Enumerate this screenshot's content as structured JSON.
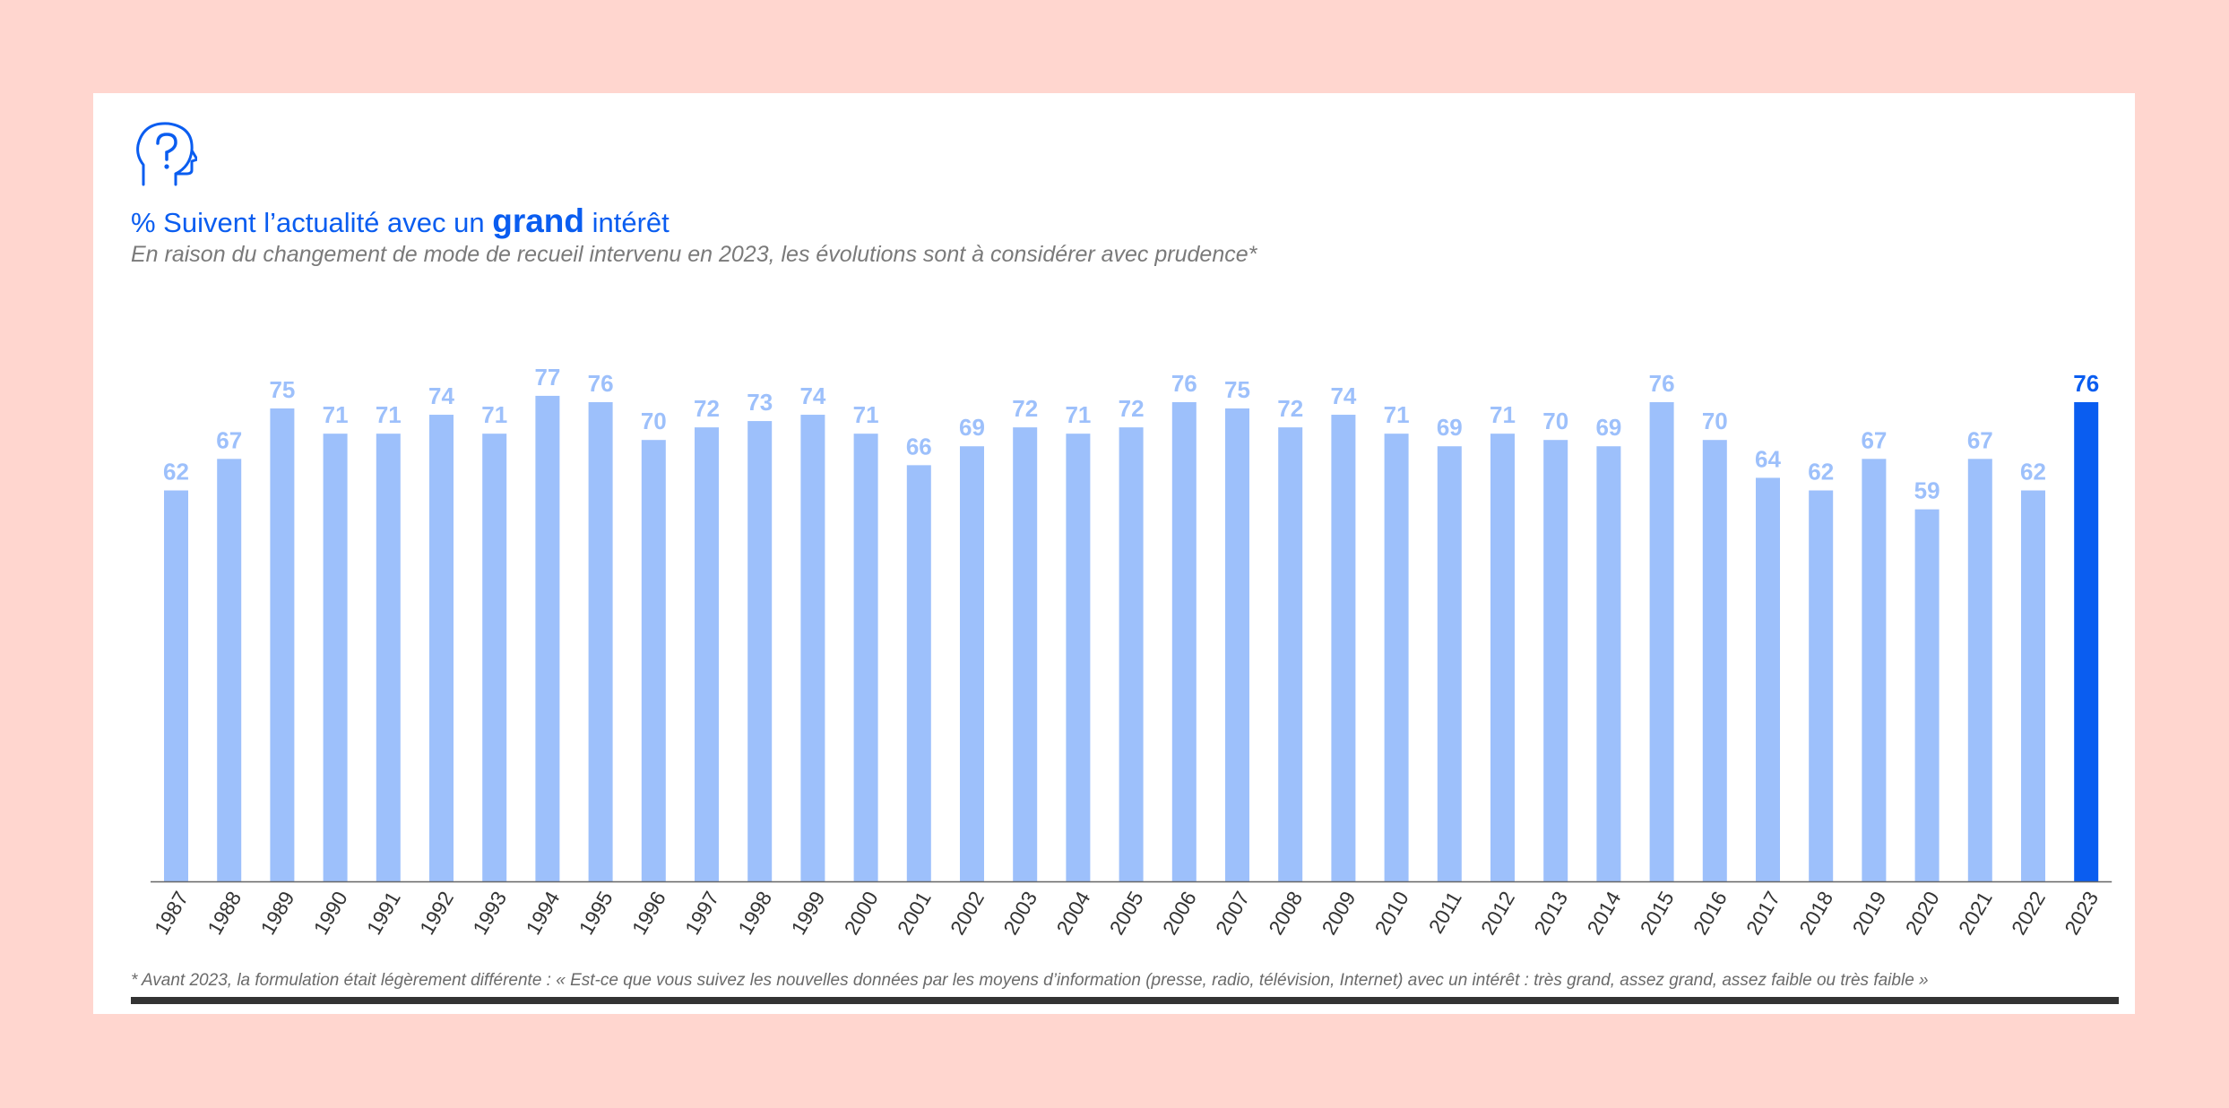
{
  "header": {
    "title_prefix": "% Suivent l’actualité avec un ",
    "title_emphasis": "grand",
    "title_suffix": " intérêt",
    "subtitle": "En raison du changement de mode de recueil intervenu en 2023, les évolutions sont à considérer avec prudence*",
    "icon": "head-question-icon"
  },
  "colors": {
    "bar": "#9dc0fb",
    "bar_highlight": "#0a5df0",
    "label": "#9dc0fb",
    "label_highlight": "#0a5df0",
    "axis_text": "#333333"
  },
  "chart_data": {
    "type": "bar",
    "title": "% Suivent l’actualité avec un grand intérêt",
    "categories": [
      "1987",
      "1988",
      "1989",
      "1990",
      "1991",
      "1992",
      "1993",
      "1994",
      "1995",
      "1996",
      "1997",
      "1998",
      "1999",
      "2000",
      "2001",
      "2002",
      "2003",
      "2004",
      "2005",
      "2006",
      "2007",
      "2008",
      "2009",
      "2010",
      "2011",
      "2012",
      "2013",
      "2014",
      "2015",
      "2016",
      "2017",
      "2018",
      "2019",
      "2020",
      "2021",
      "2022",
      "2023"
    ],
    "values": [
      62,
      67,
      75,
      71,
      71,
      74,
      71,
      77,
      76,
      70,
      72,
      73,
      74,
      71,
      66,
      69,
      72,
      71,
      72,
      76,
      75,
      72,
      74,
      71,
      69,
      71,
      70,
      69,
      76,
      70,
      64,
      62,
      67,
      59,
      67,
      62,
      76
    ],
    "highlight": "2023",
    "xlabel": "",
    "ylabel": "",
    "ylim": [
      0,
      100
    ],
    "grid": false,
    "data_labels": true
  },
  "footnote": "* Avant 2023, la formulation était légèrement différente :  « Est-ce que vous suivez les nouvelles données par les moyens d’information (presse, radio, télévision, Internet) avec un intérêt : très grand, assez grand, assez faible ou très faible »"
}
